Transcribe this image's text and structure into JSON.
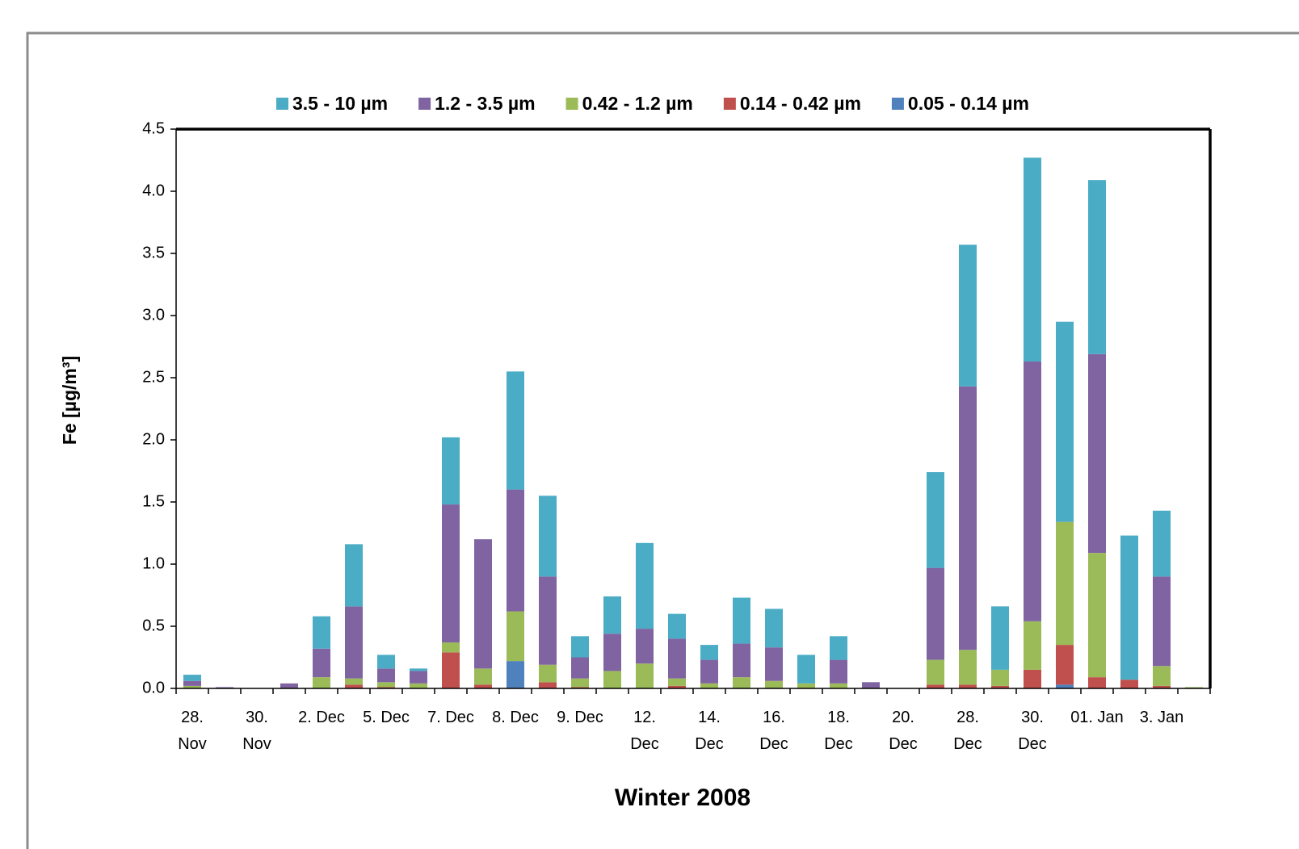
{
  "chart_data": {
    "type": "stacked_bar",
    "x_label": "Winter 2008",
    "y_label": "Fe  [µg/m³]",
    "categories": [
      "28.\nNov",
      null,
      "30.\nNov",
      null,
      "2. Dec",
      null,
      "5. Dec",
      null,
      "7. Dec",
      null,
      "8. Dec",
      null,
      "9. Dec",
      null,
      "12.\nDec",
      null,
      "14.\nDec",
      null,
      "16.\nDec",
      null,
      "18.\nDec",
      null,
      "20.\nDec",
      null,
      "28.\nDec",
      null,
      "30.\nDec",
      null,
      "01. Jan",
      null,
      "3. Jan",
      null
    ],
    "series": [
      {
        "name": "3.5 - 10 µm",
        "color": "#4bacc6",
        "values": [
          0.05,
          0,
          0,
          0,
          0.26,
          0.5,
          0.11,
          0.02,
          0.54,
          0,
          0.95,
          0.65,
          0.17,
          0.3,
          0.69,
          0.2,
          0.12,
          0.37,
          0.31,
          0.23,
          0.19,
          0,
          0,
          0.77,
          1.14,
          0.51,
          1.64,
          1.61,
          1.4,
          1.16,
          0.53,
          0
        ]
      },
      {
        "name": "1.2 - 3.5 µm",
        "color": "#8064a2",
        "values": [
          0.04,
          0.01,
          0,
          0.04,
          0.23,
          0.58,
          0.11,
          0.1,
          1.11,
          1.04,
          0.98,
          0.71,
          0.17,
          0.3,
          0.28,
          0.32,
          0.19,
          0.27,
          0.27,
          0,
          0.19,
          0.05,
          0,
          0.74,
          2.12,
          0,
          2.09,
          0,
          1.6,
          0,
          0.72,
          0
        ]
      },
      {
        "name": "0.42 - 1.2 µm",
        "color": "#9bbb59",
        "values": [
          0.02,
          0,
          0,
          0,
          0.09,
          0.05,
          0.04,
          0.04,
          0.08,
          0.13,
          0.4,
          0.14,
          0.07,
          0.14,
          0.2,
          0.06,
          0.04,
          0.09,
          0.06,
          0.04,
          0.04,
          0,
          0,
          0.2,
          0.28,
          0.13,
          0.39,
          0.99,
          1.0,
          0,
          0.16,
          0.01
        ]
      },
      {
        "name": "0.14 - 0.42 µm",
        "color": "#c0504d",
        "values": [
          0,
          0,
          0,
          0,
          0,
          0.03,
          0.01,
          0,
          0.29,
          0.03,
          0,
          0.05,
          0.01,
          0,
          0,
          0.02,
          0,
          0,
          0,
          0,
          0,
          0,
          0,
          0.03,
          0.03,
          0.02,
          0.15,
          0.32,
          0.09,
          0.07,
          0.02,
          0
        ]
      },
      {
        "name": "0.05 - 0.14 µm",
        "color": "#4f81bd",
        "values": [
          0,
          0,
          0,
          0,
          0,
          0,
          0,
          0,
          0,
          0,
          0.22,
          0,
          0,
          0,
          0,
          0,
          0,
          0,
          0,
          0,
          0,
          0,
          0,
          0,
          0,
          0,
          0,
          0.03,
          0,
          0,
          0,
          0
        ]
      }
    ],
    "ylim": [
      0,
      4.5
    ],
    "yticks": [
      {
        "value": 0,
        "label": "0.0"
      },
      {
        "value": 0.5,
        "label": "0.5"
      },
      {
        "value": 1,
        "label": "1.0"
      },
      {
        "value": 1.5,
        "label": "1.5"
      },
      {
        "value": 2,
        "label": "2.0"
      },
      {
        "value": 2.5,
        "label": "2.5"
      },
      {
        "value": 3,
        "label": "3.0"
      },
      {
        "value": 3.5,
        "label": "3.5"
      },
      {
        "value": 4,
        "label": "4.0"
      },
      {
        "value": 4.5,
        "label": "4.5"
      }
    ],
    "legend": "top"
  }
}
